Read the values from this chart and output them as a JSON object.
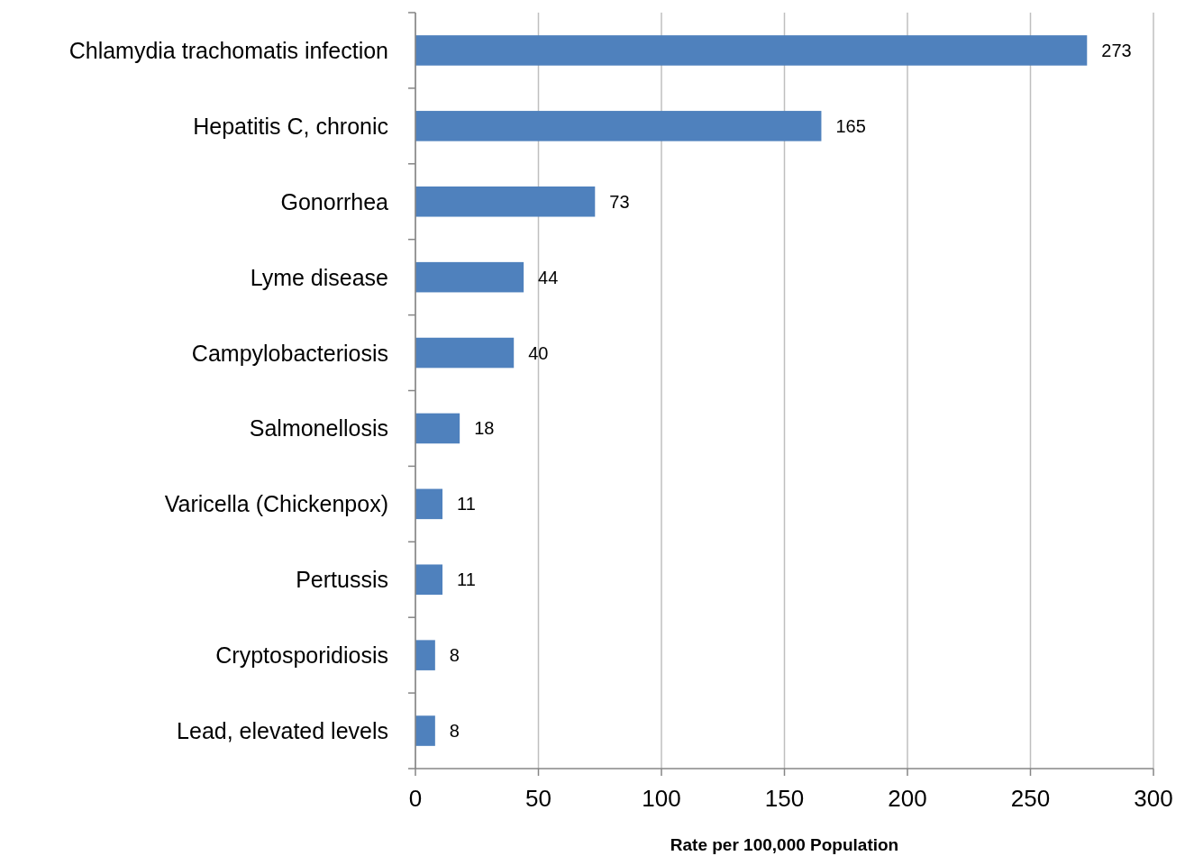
{
  "chart_data": {
    "type": "bar",
    "orientation": "horizontal",
    "xlabel": "Rate per 100,000 Population",
    "categories": [
      "Chlamydia trachomatis infection",
      "Hepatitis C, chronic",
      "Gonorrhea",
      "Lyme disease",
      "Campylobacteriosis",
      "Salmonellosis",
      "Varicella (Chickenpox)",
      "Pertussis",
      "Cryptosporidiosis",
      "Lead, elevated levels"
    ],
    "values": [
      273,
      165,
      73,
      44,
      40,
      18,
      11,
      11,
      8,
      8
    ],
    "color": "#4f81bd",
    "data_labels": true,
    "xlim": [
      0,
      300
    ],
    "xticks": [
      0,
      50,
      100,
      150,
      200,
      250,
      300
    ],
    "grid": "x"
  }
}
